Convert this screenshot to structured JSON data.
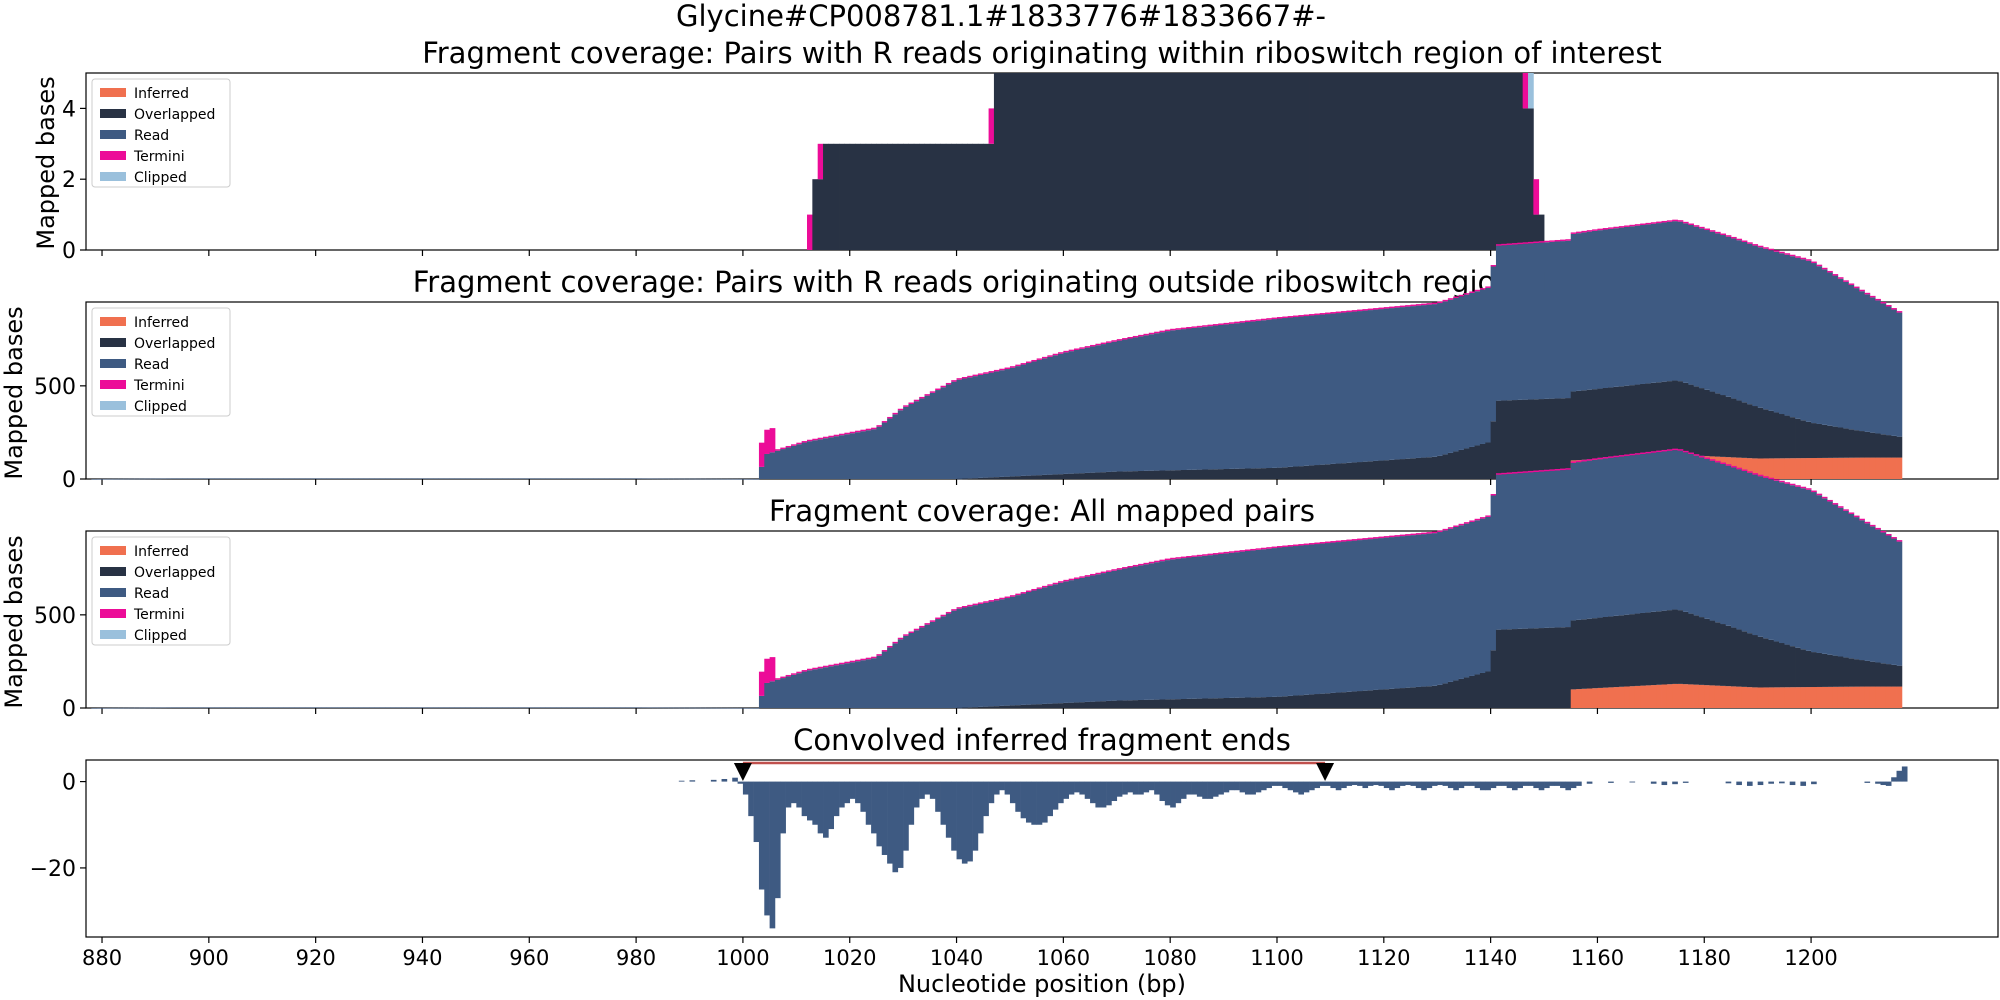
{
  "figure": {
    "suptitle": "Glycine#CP008781.1#1833776#1833667#-",
    "xlabel": "Nucleotide position (bp)",
    "xticks": [
      880,
      900,
      920,
      940,
      960,
      980,
      1000,
      1020,
      1040,
      1060,
      1080,
      1100,
      1120,
      1140,
      1160,
      1180,
      1200
    ],
    "xlim": [
      877,
      1235
    ]
  },
  "colors": {
    "Inferred": "#f0704f",
    "Overlapped": "#283244",
    "Read": "#3e5a82",
    "Termini": "#ec0c98",
    "Clipped": "#9ac0dc",
    "Convolved": "#3e5a82",
    "Interval": "#c0504d"
  },
  "chart_data": [
    {
      "type": "area",
      "title": "Fragment coverage: Pairs with R reads originating within riboswitch region of interest",
      "ylabel": "Mapped bases",
      "ylim": [
        0,
        5
      ],
      "yticks": [
        0,
        2,
        4
      ],
      "legend": [
        "Inferred",
        "Overlapped",
        "Read",
        "Termini",
        "Clipped"
      ],
      "legend_position": "upper-left",
      "stacked_step_series": {
        "Overlapped": [
          [
            1013,
            2
          ],
          [
            1015,
            3
          ],
          [
            1047,
            5
          ],
          [
            1146,
            4
          ],
          [
            1148,
            1
          ],
          [
            1150,
            0
          ]
        ],
        "Read": [
          [
            1013,
            0
          ]
        ],
        "Inferred": [
          [
            1013,
            0
          ]
        ],
        "Termini": [
          [
            1012,
            1
          ],
          [
            1013,
            0
          ],
          [
            1014,
            1
          ],
          [
            1015,
            0
          ],
          [
            1046,
            1
          ],
          [
            1047,
            0
          ],
          [
            1146,
            1
          ],
          [
            1147,
            0
          ],
          [
            1148,
            1
          ],
          [
            1149,
            0
          ]
        ],
        "Clipped": [
          [
            1013,
            0
          ],
          [
            1147,
            1
          ],
          [
            1148,
            0
          ]
        ]
      }
    },
    {
      "type": "area",
      "title": "Fragment coverage: Pairs with R reads originating outside riboswitch region of interest",
      "ylabel": "Mapped bases",
      "ylim": [
        0,
        950
      ],
      "yticks": [
        0,
        500
      ],
      "legend": [
        "Inferred",
        "Overlapped",
        "Read",
        "Termini",
        "Clipped"
      ],
      "legend_position": "upper-left",
      "profiles": {
        "Inferred": [
          [
            878,
            0
          ],
          [
            1155,
            0
          ],
          [
            1155.5,
            100
          ],
          [
            1175,
            130
          ],
          [
            1190,
            110
          ],
          [
            1210,
            115
          ],
          [
            1217,
            115
          ]
        ],
        "Overlapped": [
          [
            878,
            0
          ],
          [
            1040,
            0
          ],
          [
            1070,
            40
          ],
          [
            1100,
            60
          ],
          [
            1130,
            120
          ],
          [
            1140,
            200
          ],
          [
            1141,
            420
          ],
          [
            1155,
            435
          ],
          [
            1155.5,
            370
          ],
          [
            1175,
            400
          ],
          [
            1185,
            320
          ],
          [
            1200,
            190
          ],
          [
            1210,
            140
          ],
          [
            1217,
            110
          ]
        ],
        "Read": [
          [
            878,
            0
          ],
          [
            893,
            3
          ],
          [
            980,
            3
          ],
          [
            1003,
            0
          ],
          [
            1004,
            130
          ],
          [
            1012,
            200
          ],
          [
            1025,
            270
          ],
          [
            1030,
            380
          ],
          [
            1040,
            530
          ],
          [
            1050,
            580
          ],
          [
            1060,
            650
          ],
          [
            1080,
            750
          ],
          [
            1100,
            800
          ],
          [
            1130,
            820
          ],
          [
            1160,
            850
          ],
          [
            1200,
            865
          ],
          [
            1217,
            660
          ]
        ],
        "Termini": [
          [
            878,
            0
          ],
          [
            1004,
            0
          ],
          [
            1005,
            1
          ],
          [
            1217,
            2
          ]
        ],
        "Clipped": [
          [
            878,
            0
          ],
          [
            1217,
            0
          ]
        ]
      }
    },
    {
      "type": "area",
      "title": "Fragment coverage: All mapped pairs",
      "ylabel": "Mapped bases",
      "ylim": [
        0,
        950
      ],
      "yticks": [
        0,
        500
      ],
      "legend": [
        "Inferred",
        "Overlapped",
        "Read",
        "Termini",
        "Clipped"
      ],
      "legend_position": "upper-left",
      "profiles": {
        "Inferred": [
          [
            878,
            0
          ],
          [
            1155,
            0
          ],
          [
            1155.5,
            100
          ],
          [
            1175,
            130
          ],
          [
            1190,
            110
          ],
          [
            1210,
            115
          ],
          [
            1217,
            115
          ]
        ],
        "Overlapped": [
          [
            878,
            0
          ],
          [
            1040,
            0
          ],
          [
            1070,
            40
          ],
          [
            1100,
            60
          ],
          [
            1130,
            120
          ],
          [
            1140,
            200
          ],
          [
            1141,
            420
          ],
          [
            1155,
            435
          ],
          [
            1155.5,
            370
          ],
          [
            1175,
            400
          ],
          [
            1185,
            320
          ],
          [
            1200,
            190
          ],
          [
            1210,
            140
          ],
          [
            1217,
            110
          ]
        ],
        "Read": [
          [
            878,
            0
          ],
          [
            893,
            3
          ],
          [
            980,
            3
          ],
          [
            1003,
            0
          ],
          [
            1004,
            130
          ],
          [
            1012,
            200
          ],
          [
            1025,
            270
          ],
          [
            1030,
            380
          ],
          [
            1040,
            530
          ],
          [
            1050,
            580
          ],
          [
            1060,
            650
          ],
          [
            1080,
            750
          ],
          [
            1100,
            800
          ],
          [
            1130,
            820
          ],
          [
            1160,
            850
          ],
          [
            1200,
            865
          ],
          [
            1217,
            660
          ]
        ],
        "Termini": [
          [
            878,
            0
          ],
          [
            1004,
            0
          ],
          [
            1005,
            1
          ],
          [
            1217,
            2
          ]
        ],
        "Clipped": [
          [
            878,
            0
          ],
          [
            1217,
            0
          ]
        ]
      }
    },
    {
      "type": "bar",
      "title": "Convolved inferred fragment ends",
      "ylabel": "",
      "ylim": [
        -36,
        5
      ],
      "yticks": [
        0,
        -20
      ],
      "marked_interval": [
        1000,
        1109
      ],
      "bars": [
        [
          988,
          0.2
        ],
        [
          990,
          0.3
        ],
        [
          994,
          0.4
        ],
        [
          996,
          0.6
        ],
        [
          998,
          0.9
        ],
        [
          999,
          -0.5
        ],
        [
          1000,
          -3
        ],
        [
          1001,
          -8
        ],
        [
          1002,
          -14
        ],
        [
          1003,
          -25
        ],
        [
          1004,
          -31
        ],
        [
          1005,
          -34
        ],
        [
          1006,
          -27
        ],
        [
          1007,
          -12
        ],
        [
          1008,
          -6
        ],
        [
          1009,
          -5
        ],
        [
          1010,
          -6
        ],
        [
          1011,
          -8
        ],
        [
          1012,
          -9
        ],
        [
          1013,
          -10
        ],
        [
          1014,
          -12
        ],
        [
          1015,
          -13
        ],
        [
          1016,
          -11
        ],
        [
          1017,
          -8
        ],
        [
          1018,
          -6
        ],
        [
          1019,
          -5
        ],
        [
          1020,
          -4
        ],
        [
          1021,
          -5
        ],
        [
          1022,
          -7
        ],
        [
          1023,
          -10
        ],
        [
          1024,
          -12
        ],
        [
          1025,
          -15
        ],
        [
          1026,
          -17
        ],
        [
          1027,
          -19
        ],
        [
          1028,
          -21
        ],
        [
          1029,
          -20
        ],
        [
          1030,
          -16
        ],
        [
          1031,
          -10
        ],
        [
          1032,
          -6
        ],
        [
          1033,
          -4
        ],
        [
          1034,
          -3
        ],
        [
          1035,
          -4
        ],
        [
          1036,
          -7
        ],
        [
          1037,
          -10
        ],
        [
          1038,
          -13
        ],
        [
          1039,
          -16
        ],
        [
          1040,
          -18
        ],
        [
          1041,
          -19
        ],
        [
          1042,
          -18.5
        ],
        [
          1043,
          -16
        ],
        [
          1044,
          -12
        ],
        [
          1045,
          -8
        ],
        [
          1046,
          -5
        ],
        [
          1047,
          -3
        ],
        [
          1048,
          -2
        ],
        [
          1049,
          -3
        ],
        [
          1050,
          -5
        ],
        [
          1051,
          -7
        ],
        [
          1052,
          -8.5
        ],
        [
          1053,
          -9.5
        ],
        [
          1054,
          -10
        ],
        [
          1055,
          -10
        ],
        [
          1056,
          -9.5
        ],
        [
          1057,
          -8
        ],
        [
          1058,
          -6.5
        ],
        [
          1059,
          -5
        ],
        [
          1060,
          -4
        ],
        [
          1061,
          -3
        ],
        [
          1062,
          -2.5
        ],
        [
          1063,
          -3
        ],
        [
          1064,
          -4
        ],
        [
          1065,
          -5
        ],
        [
          1066,
          -6
        ],
        [
          1067,
          -6
        ],
        [
          1068,
          -5.5
        ],
        [
          1069,
          -4.5
        ],
        [
          1070,
          -3.5
        ],
        [
          1071,
          -3
        ],
        [
          1072,
          -2.5
        ],
        [
          1073,
          -3
        ],
        [
          1074,
          -3
        ],
        [
          1075,
          -2.5
        ],
        [
          1076,
          -2
        ],
        [
          1077,
          -3
        ],
        [
          1078,
          -4.5
        ],
        [
          1079,
          -5.5
        ],
        [
          1080,
          -6
        ],
        [
          1081,
          -5
        ],
        [
          1082,
          -4
        ],
        [
          1083,
          -3
        ],
        [
          1084,
          -3
        ],
        [
          1085,
          -3.5
        ],
        [
          1086,
          -4
        ],
        [
          1087,
          -4
        ],
        [
          1088,
          -3.5
        ],
        [
          1089,
          -3
        ],
        [
          1090,
          -2.5
        ],
        [
          1091,
          -2
        ],
        [
          1092,
          -2
        ],
        [
          1093,
          -2.5
        ],
        [
          1094,
          -3
        ],
        [
          1095,
          -3
        ],
        [
          1096,
          -2.5
        ],
        [
          1097,
          -2
        ],
        [
          1098,
          -1.5
        ],
        [
          1099,
          -1
        ],
        [
          1100,
          -1
        ],
        [
          1101,
          -1.5
        ],
        [
          1102,
          -2
        ],
        [
          1103,
          -2.5
        ],
        [
          1104,
          -3
        ],
        [
          1105,
          -2.5
        ],
        [
          1106,
          -2
        ],
        [
          1107,
          -1.5
        ],
        [
          1108,
          -1
        ],
        [
          1109,
          -1
        ],
        [
          1110,
          -1.5
        ],
        [
          1111,
          -2
        ],
        [
          1112,
          -1.5
        ],
        [
          1113,
          -1
        ],
        [
          1114,
          -0.8
        ],
        [
          1115,
          -1
        ],
        [
          1116,
          -1.5
        ],
        [
          1117,
          -1
        ],
        [
          1118,
          -0.8
        ],
        [
          1119,
          -1
        ],
        [
          1120,
          -1.5
        ],
        [
          1121,
          -2
        ],
        [
          1122,
          -1.5
        ],
        [
          1123,
          -1
        ],
        [
          1124,
          -0.8
        ],
        [
          1125,
          -1
        ],
        [
          1126,
          -1.5
        ],
        [
          1127,
          -2
        ],
        [
          1128,
          -1.5
        ],
        [
          1129,
          -1
        ],
        [
          1130,
          -0.8
        ],
        [
          1131,
          -1
        ],
        [
          1132,
          -1.5
        ],
        [
          1133,
          -2
        ],
        [
          1134,
          -1.5
        ],
        [
          1135,
          -1
        ],
        [
          1136,
          -1
        ],
        [
          1137,
          -1.5
        ],
        [
          1138,
          -2
        ],
        [
          1139,
          -2
        ],
        [
          1140,
          -1.5
        ],
        [
          1141,
          -1
        ],
        [
          1142,
          -1
        ],
        [
          1143,
          -1.5
        ],
        [
          1144,
          -2
        ],
        [
          1145,
          -1.5
        ],
        [
          1146,
          -1
        ],
        [
          1147,
          -1
        ],
        [
          1148,
          -1.5
        ],
        [
          1149,
          -2
        ],
        [
          1150,
          -1.5
        ],
        [
          1151,
          -1
        ],
        [
          1152,
          -1
        ],
        [
          1153,
          -1.5
        ],
        [
          1154,
          -2
        ],
        [
          1155,
          -1.5
        ],
        [
          1156,
          -1
        ],
        [
          1158,
          -0.5
        ],
        [
          1162,
          -0.3
        ],
        [
          1166,
          -0.2
        ],
        [
          1170,
          -0.5
        ],
        [
          1172,
          -0.8
        ],
        [
          1174,
          -0.6
        ],
        [
          1176,
          -0.3
        ],
        [
          1184,
          -0.4
        ],
        [
          1186,
          -0.8
        ],
        [
          1188,
          -1
        ],
        [
          1190,
          -0.8
        ],
        [
          1192,
          -0.5
        ],
        [
          1194,
          -0.4
        ],
        [
          1196,
          -0.8
        ],
        [
          1198,
          -1
        ],
        [
          1200,
          -0.6
        ],
        [
          1210,
          -0.3
        ],
        [
          1212,
          -0.5
        ],
        [
          1213,
          -0.8
        ],
        [
          1214,
          -1
        ],
        [
          1215,
          1
        ],
        [
          1216,
          2.5
        ],
        [
          1217,
          3.5
        ]
      ]
    }
  ]
}
